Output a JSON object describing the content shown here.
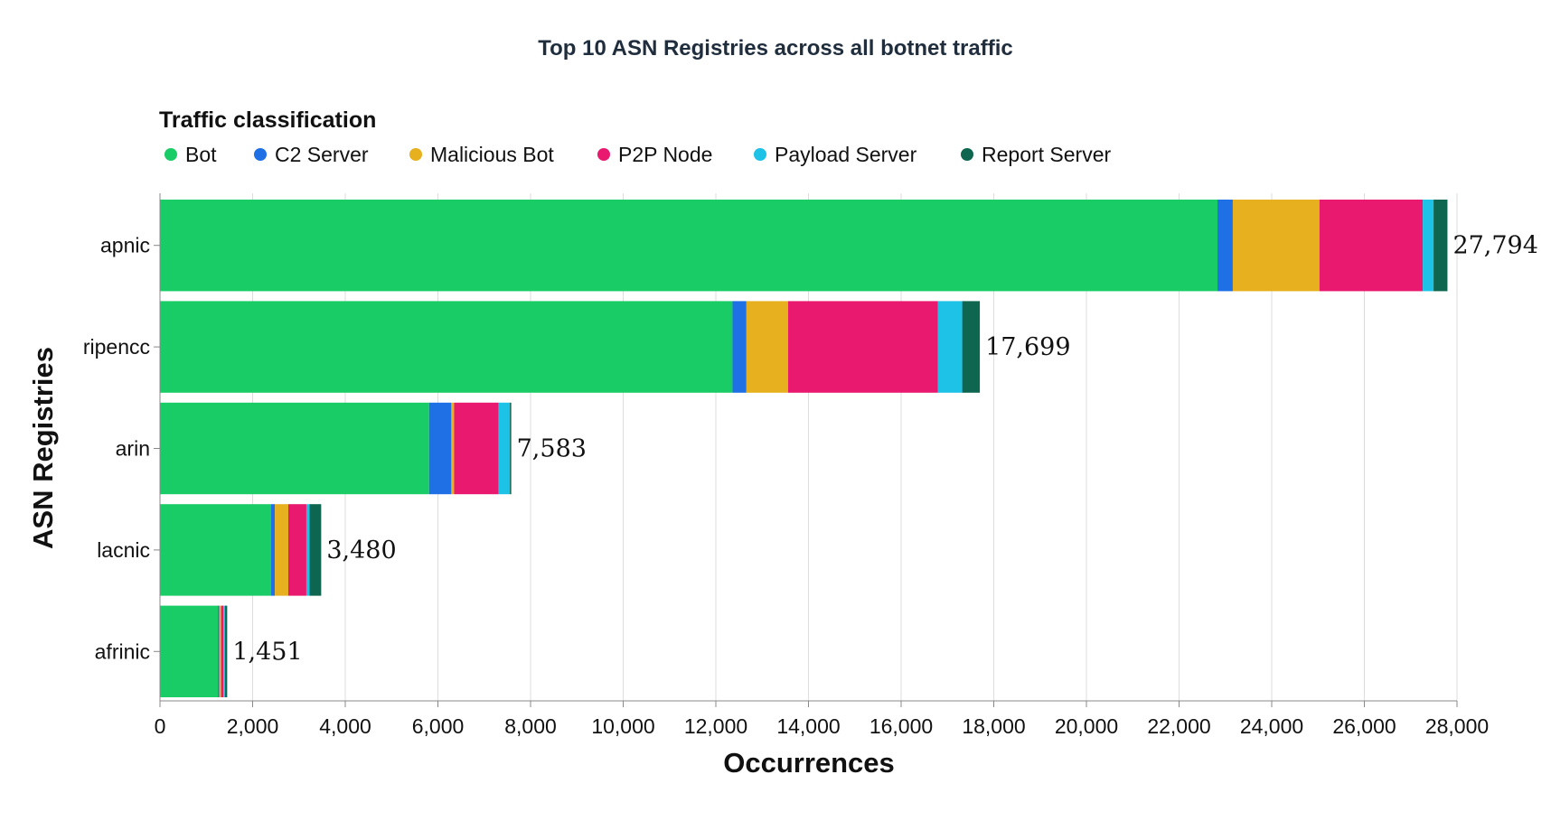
{
  "chart_data": {
    "type": "bar",
    "orientation": "horizontal",
    "stacked": true,
    "title": "Top 10 ASN Registries across all botnet traffic",
    "xlabel": "Occurrences",
    "ylabel": "ASN Registries",
    "legend_title": "Traffic classification",
    "legend_placement": "top-left",
    "grid": true,
    "xlim": [
      0,
      28000
    ],
    "xticks": [
      0,
      2000,
      4000,
      6000,
      8000,
      10000,
      12000,
      14000,
      16000,
      18000,
      20000,
      22000,
      24000,
      26000,
      28000
    ],
    "xtick_labels": [
      "0",
      "2,000",
      "4,000",
      "6,000",
      "8,000",
      "10,000",
      "12,000",
      "14,000",
      "16,000",
      "18,000",
      "20,000",
      "22,000",
      "24,000",
      "26,000",
      "28,000"
    ],
    "categories": [
      "apnic",
      "ripencc",
      "arin",
      "lacnic",
      "afrinic"
    ],
    "totals": [
      27794,
      17699,
      7583,
      3480,
      1451
    ],
    "total_labels": [
      "27,794",
      "17,699",
      "7,583",
      "3,480",
      "1,451"
    ],
    "series": [
      {
        "name": "Bot",
        "color": "#1acc66",
        "values": [
          22830,
          12360,
          5810,
          2400,
          1250
        ]
      },
      {
        "name": "C2 Server",
        "color": "#1f6fe5",
        "values": [
          330,
          300,
          480,
          80,
          30
        ]
      },
      {
        "name": "Malicious Bot",
        "color": "#e6b01e",
        "values": [
          1870,
          900,
          60,
          290,
          40
        ]
      },
      {
        "name": "P2P Node",
        "color": "#e8196e",
        "values": [
          2230,
          3230,
          960,
          390,
          50
        ]
      },
      {
        "name": "Payload Server",
        "color": "#1ec2e6",
        "values": [
          234,
          529,
          243,
          70,
          31
        ]
      },
      {
        "name": "Report Server",
        "color": "#0f6650",
        "values": [
          300,
          380,
          30,
          250,
          50
        ]
      }
    ]
  }
}
